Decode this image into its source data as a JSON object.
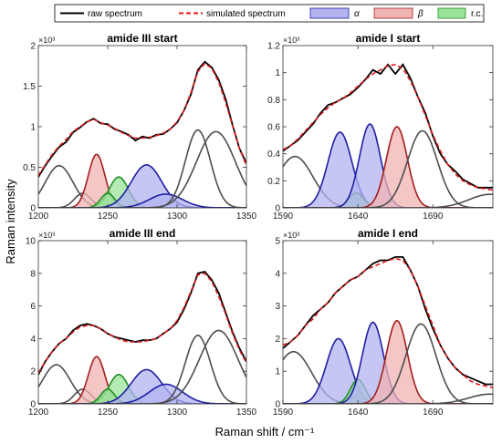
{
  "figure": {
    "ylabel": "Raman intensity",
    "xlabel": "Raman shift / cm⁻¹",
    "multiplier": "×10³"
  },
  "legend": [
    {
      "label": "raw spectrum",
      "kind": "line",
      "color": "#000000"
    },
    {
      "label": "simulated spectrum",
      "kind": "dash",
      "color": "#e31a1c"
    },
    {
      "label": "α",
      "kind": "patch",
      "fill": "#b3b3f2",
      "edge": "#1f1fa3"
    },
    {
      "label": "β",
      "kind": "patch",
      "fill": "#f2b3b3",
      "edge": "#a31f1f"
    },
    {
      "label": "r.c.",
      "kind": "patch",
      "fill": "#9be39b",
      "edge": "#1f8f1f"
    }
  ],
  "colors": {
    "alpha_fill": "#b3b3f2",
    "alpha_edge": "#1f1fa3",
    "beta_fill": "#f2b3b3",
    "beta_edge": "#a31f1f",
    "rc_fill": "#9be39b",
    "rc_edge": "#1f8f1f",
    "other_edge": "#4d4d4d",
    "raw": "#000000",
    "sim": "#e31a1c"
  },
  "chart_data": [
    {
      "type": "line",
      "title": "amide III start",
      "xlim": [
        1200,
        1350
      ],
      "ylim": [
        0,
        2
      ],
      "xticks": [
        "1200",
        "1250",
        "1300",
        "1350"
      ],
      "yticks": [
        "0",
        "0.5",
        "1",
        "1.5",
        "2"
      ],
      "raw": {
        "x": [
          1200,
          1205,
          1210,
          1215,
          1220,
          1225,
          1230,
          1235,
          1240,
          1245,
          1250,
          1255,
          1260,
          1265,
          1270,
          1275,
          1280,
          1285,
          1290,
          1295,
          1300,
          1305,
          1310,
          1315,
          1320,
          1325,
          1330,
          1335,
          1340,
          1345,
          1350
        ],
        "y": [
          0.38,
          0.52,
          0.64,
          0.75,
          0.81,
          0.93,
          0.99,
          1.06,
          1.1,
          1.04,
          1.03,
          0.97,
          0.94,
          0.9,
          0.83,
          0.88,
          0.86,
          0.9,
          0.91,
          0.97,
          1.05,
          1.2,
          1.4,
          1.7,
          1.8,
          1.73,
          1.58,
          1.34,
          1.02,
          0.73,
          0.55
        ]
      },
      "sim": {
        "x": [
          1200,
          1205,
          1210,
          1215,
          1220,
          1225,
          1230,
          1235,
          1240,
          1245,
          1250,
          1255,
          1260,
          1265,
          1270,
          1275,
          1280,
          1285,
          1290,
          1295,
          1300,
          1305,
          1310,
          1315,
          1320,
          1325,
          1330,
          1335,
          1340,
          1345,
          1350
        ],
        "y": [
          0.4,
          0.53,
          0.66,
          0.76,
          0.84,
          0.94,
          1.0,
          1.06,
          1.09,
          1.05,
          1.02,
          0.98,
          0.93,
          0.89,
          0.86,
          0.86,
          0.87,
          0.89,
          0.92,
          0.97,
          1.06,
          1.2,
          1.42,
          1.68,
          1.78,
          1.72,
          1.55,
          1.3,
          1.01,
          0.73,
          0.52
        ]
      },
      "components": [
        {
          "class": "other",
          "center": 1215,
          "amp": 0.52,
          "width": 10
        },
        {
          "class": "other",
          "center": 1232,
          "amp": 0.18,
          "width": 6
        },
        {
          "class": "beta",
          "center": 1242,
          "amp": 0.66,
          "width": 6
        },
        {
          "class": "rc",
          "center": 1258,
          "amp": 0.38,
          "width": 7
        },
        {
          "class": "rc",
          "center": 1250,
          "amp": 0.18,
          "width": 5
        },
        {
          "class": "alpha",
          "center": 1278,
          "amp": 0.53,
          "width": 11
        },
        {
          "class": "alpha",
          "center": 1292,
          "amp": 0.17,
          "width": 12
        },
        {
          "class": "other",
          "center": 1315,
          "amp": 0.96,
          "width": 9
        },
        {
          "class": "other",
          "center": 1328,
          "amp": 0.94,
          "width": 14
        }
      ]
    },
    {
      "type": "line",
      "title": "amide I start",
      "xlim": [
        1590,
        1730
      ],
      "ylim": [
        0,
        1.2
      ],
      "xticks": [
        "1590",
        "1640",
        "1690"
      ],
      "yticks": [
        "0",
        "0.2",
        "0.4",
        "0.6",
        "0.8",
        "1",
        "1.2"
      ],
      "raw": {
        "x": [
          1590,
          1595,
          1600,
          1605,
          1610,
          1615,
          1620,
          1625,
          1630,
          1635,
          1640,
          1645,
          1650,
          1655,
          1660,
          1665,
          1670,
          1675,
          1680,
          1685,
          1690,
          1695,
          1700,
          1705,
          1710,
          1715,
          1720,
          1725,
          1730
        ],
        "y": [
          0.42,
          0.46,
          0.5,
          0.56,
          0.62,
          0.7,
          0.76,
          0.78,
          0.81,
          0.84,
          0.89,
          0.95,
          1.02,
          0.99,
          1.06,
          0.99,
          1.06,
          0.96,
          0.82,
          0.7,
          0.53,
          0.4,
          0.32,
          0.27,
          0.21,
          0.18,
          0.15,
          0.15,
          0.15
        ]
      },
      "sim": {
        "x": [
          1590,
          1595,
          1600,
          1605,
          1610,
          1615,
          1620,
          1625,
          1630,
          1635,
          1640,
          1645,
          1650,
          1655,
          1660,
          1665,
          1670,
          1675,
          1680,
          1685,
          1690,
          1695,
          1700,
          1705,
          1710,
          1715,
          1720,
          1725,
          1730
        ],
        "y": [
          0.43,
          0.46,
          0.51,
          0.57,
          0.63,
          0.69,
          0.74,
          0.78,
          0.81,
          0.85,
          0.9,
          0.95,
          0.99,
          1.02,
          1.05,
          1.06,
          1.03,
          0.94,
          0.82,
          0.68,
          0.54,
          0.42,
          0.32,
          0.25,
          0.2,
          0.17,
          0.15,
          0.14,
          0.13
        ]
      },
      "components": [
        {
          "class": "other",
          "center": 1598,
          "amp": 0.38,
          "width": 12
        },
        {
          "class": "alpha",
          "center": 1628,
          "amp": 0.56,
          "width": 8
        },
        {
          "class": "rc",
          "center": 1639,
          "amp": 0.11,
          "width": 5
        },
        {
          "class": "alpha",
          "center": 1648,
          "amp": 0.62,
          "width": 7
        },
        {
          "class": "beta",
          "center": 1666,
          "amp": 0.6,
          "width": 7
        },
        {
          "class": "other",
          "center": 1683,
          "amp": 0.57,
          "width": 10
        },
        {
          "class": "other",
          "center": 1728,
          "amp": 0.1,
          "width": 14
        }
      ]
    },
    {
      "type": "line",
      "title": "amide III end",
      "xlim": [
        1200,
        1350
      ],
      "ylim": [
        0,
        10
      ],
      "xticks": [
        "1200",
        "1250",
        "1300",
        "1350"
      ],
      "yticks": [
        "0",
        "2",
        "4",
        "6",
        "8",
        "10"
      ],
      "raw": {
        "x": [
          1200,
          1205,
          1210,
          1215,
          1220,
          1225,
          1230,
          1235,
          1240,
          1245,
          1250,
          1255,
          1260,
          1265,
          1270,
          1275,
          1280,
          1285,
          1290,
          1295,
          1300,
          1305,
          1310,
          1315,
          1320,
          1325,
          1330,
          1335,
          1340,
          1345,
          1350
        ],
        "y": [
          1.8,
          2.6,
          3.2,
          3.7,
          4.0,
          4.5,
          4.8,
          4.9,
          4.8,
          4.6,
          4.3,
          4.1,
          4.0,
          3.9,
          3.8,
          3.9,
          3.9,
          4.0,
          4.3,
          4.6,
          5.0,
          5.8,
          6.8,
          8.0,
          8.1,
          7.6,
          6.8,
          5.6,
          4.4,
          3.4,
          2.6
        ]
      },
      "sim": {
        "x": [
          1200,
          1205,
          1210,
          1215,
          1220,
          1225,
          1230,
          1235,
          1240,
          1245,
          1250,
          1255,
          1260,
          1265,
          1270,
          1275,
          1280,
          1285,
          1290,
          1295,
          1300,
          1305,
          1310,
          1315,
          1320,
          1325,
          1330,
          1335,
          1340,
          1345,
          1350
        ],
        "y": [
          1.9,
          2.6,
          3.2,
          3.7,
          4.0,
          4.4,
          4.7,
          4.8,
          4.8,
          4.6,
          4.3,
          4.1,
          3.9,
          3.8,
          3.8,
          3.8,
          3.9,
          4.0,
          4.3,
          4.6,
          5.1,
          5.9,
          6.9,
          7.9,
          8.0,
          7.5,
          6.6,
          5.5,
          4.3,
          3.3,
          2.5
        ]
      },
      "components": [
        {
          "class": "other",
          "center": 1213,
          "amp": 2.4,
          "width": 10
        },
        {
          "class": "other",
          "center": 1232,
          "amp": 0.9,
          "width": 6
        },
        {
          "class": "beta",
          "center": 1242,
          "amp": 2.9,
          "width": 6
        },
        {
          "class": "rc",
          "center": 1258,
          "amp": 1.8,
          "width": 7
        },
        {
          "class": "rc",
          "center": 1250,
          "amp": 0.9,
          "width": 5
        },
        {
          "class": "alpha",
          "center": 1278,
          "amp": 2.1,
          "width": 11
        },
        {
          "class": "alpha",
          "center": 1292,
          "amp": 1.2,
          "width": 12
        },
        {
          "class": "other",
          "center": 1315,
          "amp": 4.2,
          "width": 9
        },
        {
          "class": "other",
          "center": 1330,
          "amp": 4.5,
          "width": 14
        }
      ]
    },
    {
      "type": "line",
      "title": "amide I end",
      "xlim": [
        1590,
        1730
      ],
      "ylim": [
        0,
        5
      ],
      "xticks": [
        "1590",
        "1640",
        "1690"
      ],
      "yticks": [
        "0",
        "1",
        "2",
        "3",
        "4",
        "5"
      ],
      "raw": {
        "x": [
          1590,
          1595,
          1600,
          1605,
          1610,
          1615,
          1620,
          1625,
          1630,
          1635,
          1640,
          1645,
          1650,
          1655,
          1660,
          1665,
          1670,
          1675,
          1680,
          1685,
          1690,
          1695,
          1700,
          1705,
          1710,
          1715,
          1720,
          1725,
          1730
        ],
        "y": [
          1.7,
          1.9,
          2.1,
          2.4,
          2.7,
          2.9,
          3.1,
          3.4,
          3.6,
          3.8,
          3.9,
          4.1,
          4.3,
          4.4,
          4.4,
          4.5,
          4.5,
          4.1,
          3.6,
          2.9,
          2.3,
          1.8,
          1.4,
          1.1,
          0.9,
          0.8,
          0.7,
          0.6,
          0.6
        ]
      },
      "sim": {
        "x": [
          1590,
          1595,
          1600,
          1605,
          1610,
          1615,
          1620,
          1625,
          1630,
          1635,
          1640,
          1645,
          1650,
          1655,
          1660,
          1665,
          1670,
          1675,
          1680,
          1685,
          1690,
          1695,
          1700,
          1705,
          1710,
          1715,
          1720,
          1725,
          1730
        ],
        "y": [
          1.8,
          1.9,
          2.1,
          2.4,
          2.6,
          2.9,
          3.1,
          3.4,
          3.6,
          3.8,
          3.9,
          4.1,
          4.2,
          4.3,
          4.4,
          4.45,
          4.4,
          4.1,
          3.6,
          3.0,
          2.4,
          1.8,
          1.4,
          1.1,
          0.9,
          0.7,
          0.6,
          0.55,
          0.5
        ]
      },
      "components": [
        {
          "class": "other",
          "center": 1597,
          "amp": 1.6,
          "width": 12
        },
        {
          "class": "alpha",
          "center": 1627,
          "amp": 2.0,
          "width": 8
        },
        {
          "class": "rc",
          "center": 1640,
          "amp": 0.75,
          "width": 5
        },
        {
          "class": "alpha",
          "center": 1650,
          "amp": 2.5,
          "width": 7
        },
        {
          "class": "beta",
          "center": 1666,
          "amp": 2.55,
          "width": 7
        },
        {
          "class": "other",
          "center": 1682,
          "amp": 2.45,
          "width": 10
        },
        {
          "class": "other",
          "center": 1728,
          "amp": 0.3,
          "width": 14
        }
      ]
    }
  ]
}
